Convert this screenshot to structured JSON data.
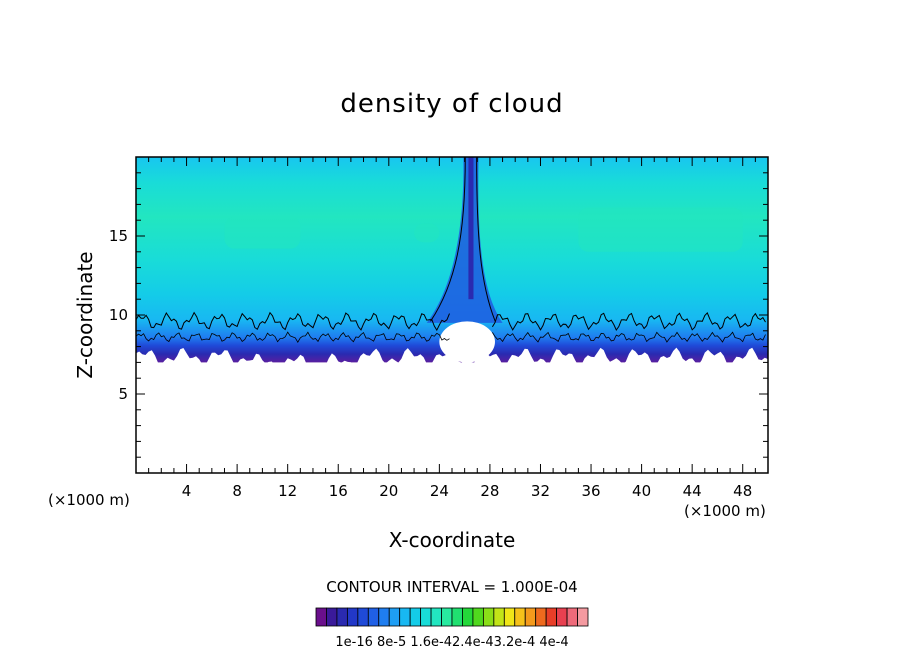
{
  "chart_data": {
    "type": "heatmap",
    "title": "density of cloud",
    "xlabel": "X-coordinate",
    "ylabel": "Z-coordinate",
    "x_unit_left": "(×1000 m)",
    "x_unit_right": "(×1000 m)",
    "xlim": [
      0,
      50
    ],
    "ylim": [
      0,
      20
    ],
    "xticks": [
      4,
      8,
      12,
      16,
      20,
      24,
      28,
      32,
      36,
      40,
      44,
      48
    ],
    "yticks": [
      5,
      10,
      15
    ],
    "contour_interval_text": "CONTOUR INTERVAL = 1.000E-04",
    "colorbar": {
      "colors": [
        "#6a0f8c",
        "#3a1a9a",
        "#2a2ab0",
        "#2238c8",
        "#1f4ad8",
        "#2060e6",
        "#1f7ef0",
        "#1e9ef4",
        "#18b8f2",
        "#14cce8",
        "#19dcd8",
        "#22e6c0",
        "#28eaa0",
        "#20e070",
        "#24d83a",
        "#50d81e",
        "#8ade18",
        "#c2e418",
        "#f0e618",
        "#f6c21a",
        "#f49a1c",
        "#ee6a1e",
        "#e83e28",
        "#e84050",
        "#ee6a7a",
        "#f49aa0"
      ],
      "labels": [
        "1e-16",
        "8e-5",
        "1.6e-4",
        "2.4e-4",
        "3.2e-4",
        "4e-4"
      ],
      "label_text": "1e-16 8e-5 1.6e-42.4e-43.2e-4 4e-4"
    },
    "field": {
      "cloud_base_km": 7.5,
      "cloud_top_km": 20,
      "hole_center_x": 26.5,
      "color_by_height": [
        {
          "z": 7.5,
          "color": "#8a2aa6"
        },
        {
          "z": 8.0,
          "color": "#5b1fa0"
        },
        {
          "z": 8.5,
          "color": "#2a2ab0"
        },
        {
          "z": 9.0,
          "color": "#1f4ad8"
        },
        {
          "z": 9.5,
          "color": "#1f7ef0"
        },
        {
          "z": 10.5,
          "color": "#18b8f2"
        },
        {
          "z": 12.0,
          "color": "#14cce8"
        },
        {
          "z": 14.0,
          "color": "#19dcd8"
        },
        {
          "z": 16.5,
          "color": "#22e6c0"
        },
        {
          "z": 18.5,
          "color": "#19dcd8"
        },
        {
          "z": 20.0,
          "color": "#18c6f0"
        }
      ]
    }
  }
}
